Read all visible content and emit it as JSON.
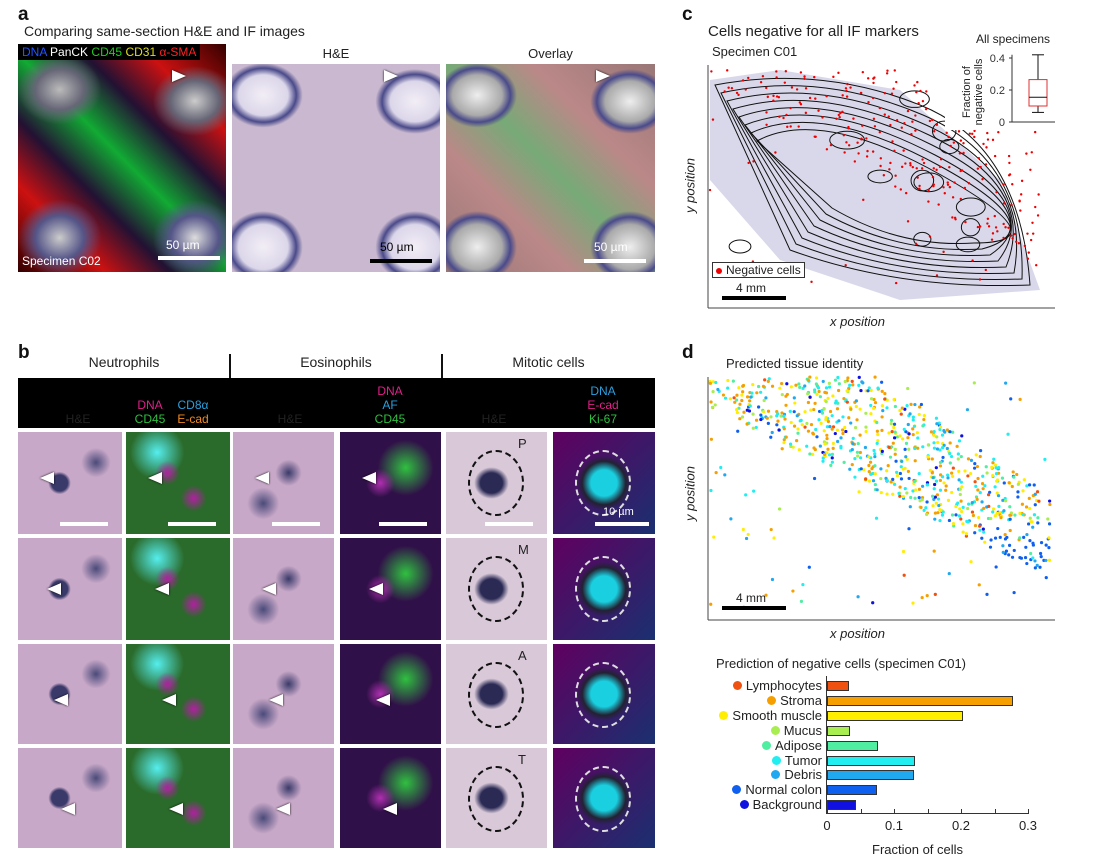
{
  "panel_a": {
    "label": "a",
    "title": "Comparing same-section H&E and IF images",
    "if_markers": [
      {
        "text": "DNA",
        "color": "#2255ff"
      },
      {
        "text": "PanCK",
        "color": "#ffffff"
      },
      {
        "text": "CD45",
        "color": "#22cc22"
      },
      {
        "text": "CD31",
        "color": "#dddd22"
      },
      {
        "text": "α-SMA",
        "color": "#ff2222"
      }
    ],
    "he_label": "H&E",
    "overlay_label": "Overlay",
    "specimen": "Specimen C02",
    "scale": "50 µm"
  },
  "panel_b": {
    "label": "b",
    "groups": [
      "Neutrophils",
      "Eosinophils",
      "Mitotic cells"
    ],
    "columns": [
      {
        "lines": [
          {
            "text": "H&E",
            "color": "#ffffff"
          }
        ]
      },
      {
        "lines": [
          {
            "text": "DNA",
            "color": "#e0208a"
          },
          {
            "text": "CD8α",
            "color": "#2aa0e0"
          },
          {
            "text": "CD45",
            "color": "#2ec040"
          },
          {
            "text": "E-cad",
            "color": "#f08a20"
          }
        ]
      },
      {
        "lines": [
          {
            "text": "H&E",
            "color": "#ffffff"
          }
        ]
      },
      {
        "lines": [
          {
            "text": "DNA",
            "color": "#e0208a"
          },
          {
            "text": "AF",
            "color": "#2aa0e0"
          },
          {
            "text": "CD45",
            "color": "#2ec040"
          }
        ]
      },
      {
        "lines": [
          {
            "text": "H&E",
            "color": "#ffffff"
          }
        ]
      },
      {
        "lines": [
          {
            "text": "DNA",
            "color": "#2aa0e0"
          },
          {
            "text": "E-cad",
            "color": "#e0208a"
          },
          {
            "text": "Ki-67",
            "color": "#2ec040"
          }
        ]
      }
    ],
    "phases": [
      "P",
      "M",
      "A",
      "T"
    ],
    "scale": "10 µm"
  },
  "panel_c": {
    "label": "c",
    "title": "Cells negative for all IF markers",
    "specimen": "Specimen C01",
    "xlabel": "x position",
    "ylabel": "y position",
    "legend": "Negative cells",
    "scale": "4 mm",
    "inset": {
      "title": "All specimens",
      "ylabel_line1": "Fraction of",
      "ylabel_line2": "negative cells",
      "ticks": [
        "0",
        "0.2",
        "0.4"
      ]
    }
  },
  "panel_d": {
    "label": "d",
    "title": "Predicted tissue identity",
    "xlabel": "x position",
    "ylabel": "y position",
    "scale": "4 mm"
  },
  "chart_data": [
    {
      "type": "bar",
      "orientation": "horizontal",
      "title": "Prediction of negative cells (specimen C01)",
      "xlabel": "Fraction of cells",
      "ylabel": "",
      "xlim": [
        0,
        0.3
      ],
      "xticks": [
        "0",
        "0.1",
        "0.2",
        "0.3"
      ],
      "categories": [
        "Lymphocytes",
        "Stroma",
        "Smooth muscle",
        "Mucus",
        "Adipose",
        "Tumor",
        "Debris",
        "Normal colon",
        "Background"
      ],
      "values": [
        0.033,
        0.277,
        0.203,
        0.034,
        0.076,
        0.132,
        0.13,
        0.074,
        0.044
      ],
      "colors": [
        "#f05010",
        "#f5a000",
        "#ffee00",
        "#a8ee50",
        "#50eea0",
        "#20eef0",
        "#20a8f0",
        "#1060f0",
        "#1010e0"
      ]
    },
    {
      "type": "box",
      "title": "All specimens",
      "ylabel": "Fraction of negative cells",
      "ylim": [
        0,
        0.45
      ],
      "min": 0.06,
      "q1": 0.1,
      "median": 0.155,
      "q3": 0.265,
      "max": 0.42,
      "box_color": "#e03030"
    }
  ]
}
